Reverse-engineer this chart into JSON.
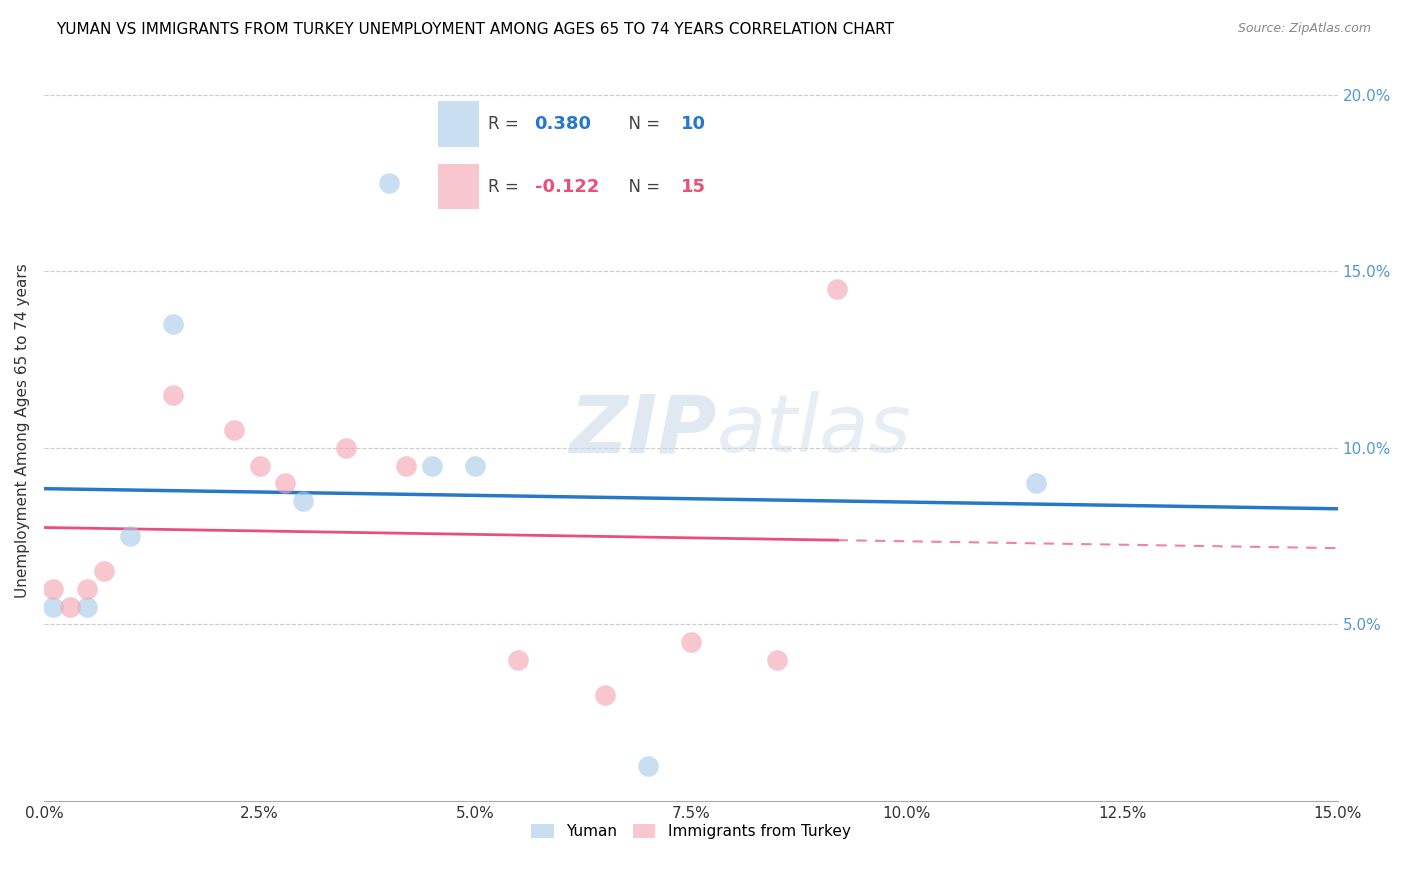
{
  "title": "YUMAN VS IMMIGRANTS FROM TURKEY UNEMPLOYMENT AMONG AGES 65 TO 74 YEARS CORRELATION CHART",
  "source": "Source: ZipAtlas.com",
  "ylabel": "Unemployment Among Ages 65 to 74 years",
  "xlim": [
    0.0,
    0.15
  ],
  "ylim": [
    0.0,
    0.21
  ],
  "xticks": [
    0.0,
    0.025,
    0.05,
    0.075,
    0.1,
    0.125,
    0.15
  ],
  "yticks_right": [
    0.05,
    0.1,
    0.15,
    0.2
  ],
  "legend_label1": "Yuman",
  "legend_label2": "Immigrants from Turkey",
  "blue_color": "#a8c8e8",
  "pink_color": "#f4a0b0",
  "blue_line_color": "#2878c8",
  "pink_line_color": "#e8507a",
  "watermark_zip": "ZIP",
  "watermark_atlas": "atlas",
  "yuman_x": [
    0.001,
    0.005,
    0.01,
    0.015,
    0.03,
    0.04,
    0.045,
    0.05,
    0.07,
    0.115
  ],
  "yuman_y": [
    0.055,
    0.055,
    0.075,
    0.135,
    0.085,
    0.175,
    0.095,
    0.095,
    0.01,
    0.09
  ],
  "turkey_x": [
    0.001,
    0.003,
    0.005,
    0.007,
    0.015,
    0.022,
    0.025,
    0.028,
    0.035,
    0.042,
    0.055,
    0.065,
    0.075,
    0.085,
    0.092
  ],
  "turkey_y": [
    0.06,
    0.055,
    0.06,
    0.065,
    0.115,
    0.105,
    0.095,
    0.09,
    0.1,
    0.095,
    0.04,
    0.03,
    0.045,
    0.04,
    0.145
  ],
  "blue_scatter_size": 220,
  "pink_scatter_size": 220
}
